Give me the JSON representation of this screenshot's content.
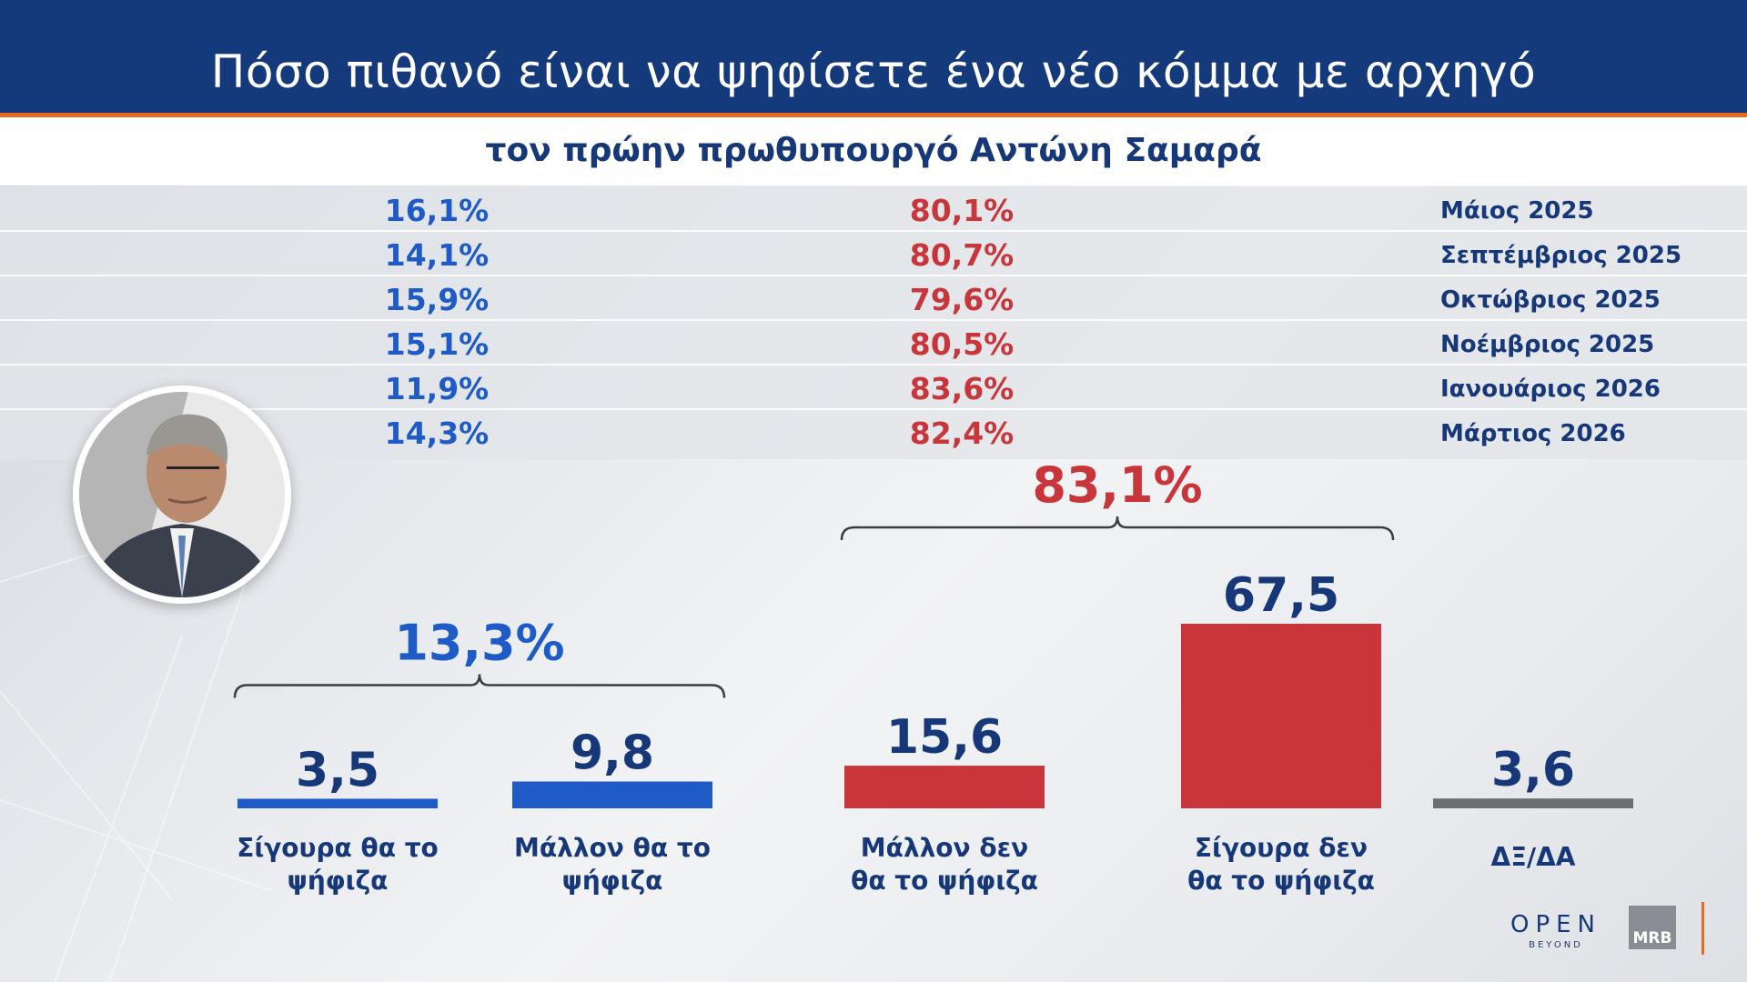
{
  "header": {
    "title": "Πόσο πιθανό είναι να ψηφίσετε ένα νέο κόμμα με αρχηγό",
    "subtitle": "τον πρώην πρωθυπουργό Αντώνη Σαμαρά"
  },
  "history": [
    {
      "yes": "16,1%",
      "no": "80,1%",
      "month": "Μάιος 2025"
    },
    {
      "yes": "14,1%",
      "no": "80,7%",
      "month": "Σεπτέμβριος 2025"
    },
    {
      "yes": "15,9%",
      "no": "79,6%",
      "month": "Οκτώβριος 2025"
    },
    {
      "yes": "15,1%",
      "no": "80,5%",
      "month": "Νοέμβριος 2025"
    },
    {
      "yes": "11,9%",
      "no": "83,6%",
      "month": "Ιανουάριος 2026"
    },
    {
      "yes": "14,3%",
      "no": "82,4%",
      "month": "Μάρτιος 2026"
    }
  ],
  "chart_data": {
    "type": "bar",
    "title": "",
    "xlabel": "",
    "ylabel": "",
    "ylim": [
      0,
      67.5
    ],
    "categories": [
      [
        "Σίγουρα θα το",
        "ψήφιζα"
      ],
      [
        "Μάλλον θα το",
        "ψήφιζα"
      ],
      [
        "Μάλλον δεν",
        "θα το ψήφιζα"
      ],
      [
        "Σίγουρα δεν",
        "θα το ψήφιζα"
      ],
      [
        "ΔΞ/ΔΑ"
      ]
    ],
    "values": [
      3.5,
      9.8,
      15.6,
      67.5,
      3.6
    ],
    "value_labels": [
      "3,5",
      "9,8",
      "15,6",
      "67,5",
      "3,6"
    ],
    "colors": [
      "#1e5bc6",
      "#1e5bc6",
      "#c8363b",
      "#c8363b",
      "#6b6e73"
    ],
    "groups": [
      {
        "label": "13,3%",
        "from": 0,
        "to": 1,
        "color": "#1e5bc6"
      },
      {
        "label": "83,1%",
        "from": 2,
        "to": 3,
        "color": "#c8363b"
      }
    ],
    "label_color": "#173878",
    "grid": false
  },
  "logos": {
    "open": "OPEN",
    "open_sub": "BEYOND",
    "mrb": "MRB"
  }
}
